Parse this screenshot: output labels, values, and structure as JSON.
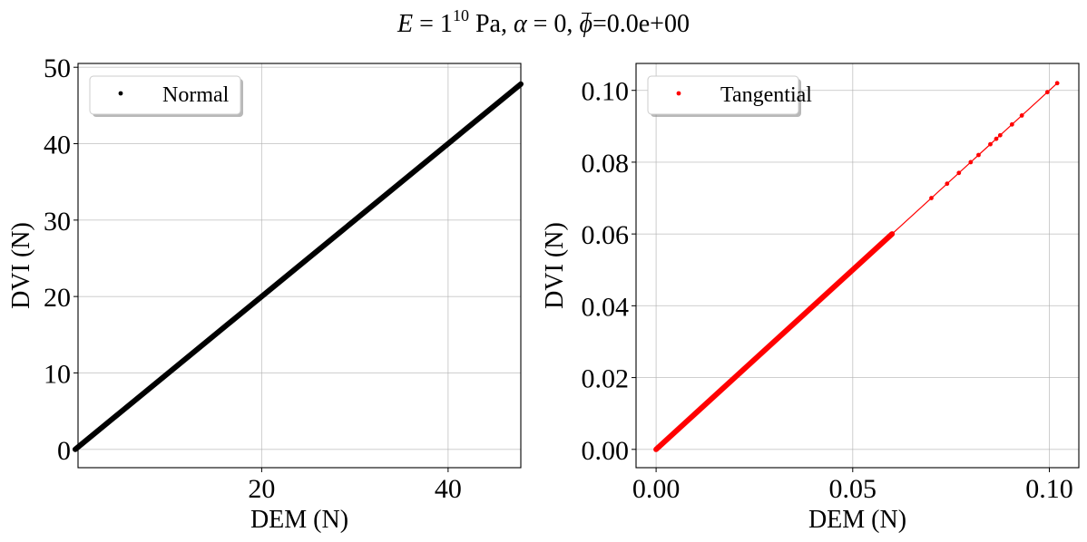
{
  "figure": {
    "title_parts": {
      "E": "E",
      "eq1": " = 1",
      "exp": "10",
      "unit": " Pa, ",
      "alpha": "α",
      "eq2": " = 0, ",
      "phi": "ϕ",
      "eq3": "=0.0e+00"
    }
  },
  "chart_data": [
    {
      "type": "scatter",
      "xlabel": "DEM (N)",
      "ylabel": "DVI (N)",
      "xlim": [
        0.3,
        47.8
      ],
      "ylim": [
        -2.4,
        50.5
      ],
      "xticks": [
        20,
        40
      ],
      "xtick_labels": [
        "20",
        "40"
      ],
      "yticks": [
        0,
        10,
        20,
        30,
        40,
        50
      ],
      "ytick_labels": [
        "0",
        "10",
        "20",
        "30",
        "40",
        "50"
      ],
      "grid": true,
      "legend_position": "upper left",
      "series": [
        {
          "name": "Normal",
          "color": "#000000",
          "x": [
            0,
            47.8
          ],
          "y": [
            0,
            47.8
          ]
        }
      ]
    },
    {
      "type": "scatter",
      "xlabel": "DEM (N)",
      "ylabel": "DVI (N)",
      "xlim": [
        -0.0051,
        0.1075
      ],
      "ylim": [
        -0.0051,
        0.1075
      ],
      "xticks": [
        0.0,
        0.05,
        0.1
      ],
      "xtick_labels": [
        "0.00",
        "0.05",
        "0.10"
      ],
      "yticks": [
        0.0,
        0.02,
        0.04,
        0.06,
        0.08,
        0.1
      ],
      "ytick_labels": [
        "0.00",
        "0.02",
        "0.04",
        "0.06",
        "0.08",
        "0.10"
      ],
      "grid": true,
      "legend_position": "upper left",
      "series": [
        {
          "name": "Tangential",
          "color": "#ff0000",
          "x": [
            0,
            0.06,
            0.07,
            0.074,
            0.077,
            0.08,
            0.082,
            0.085,
            0.0865,
            0.0875,
            0.0905,
            0.093,
            0.0995,
            0.102
          ],
          "y": [
            0,
            0.06,
            0.07,
            0.074,
            0.077,
            0.08,
            0.082,
            0.085,
            0.0865,
            0.0875,
            0.0905,
            0.093,
            0.0995,
            0.102
          ]
        }
      ]
    }
  ]
}
